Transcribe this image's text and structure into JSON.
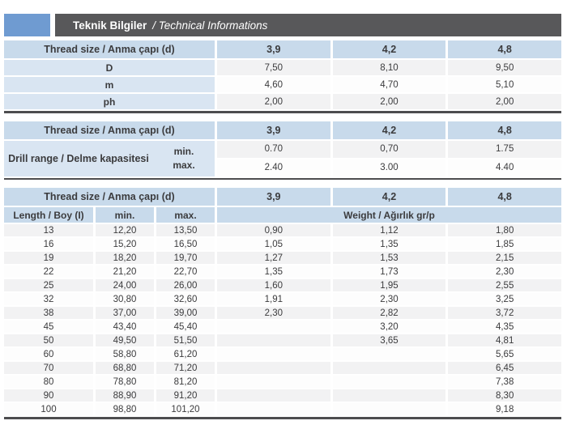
{
  "title_bar": {
    "title_bold": "Teknik Bilgiler",
    "title_italic": "/ Technical Informations",
    "accent_color": "#6f9bd1",
    "bar_color": "#58585a"
  },
  "colors": {
    "header_blue": "#c8daeb",
    "label_blue": "#d9e5f2",
    "stripe_gray": "#f2f2f3",
    "stripe_white": "#fdfdfd",
    "divider_gray": "#4d4d4f",
    "text": "#3b3b3d"
  },
  "tables": {
    "dimensions": {
      "header": [
        "Thread size / Anma çapı (d)",
        "3,9",
        "4,2",
        "4,8"
      ],
      "rows": [
        {
          "label": "D",
          "values": [
            "7,50",
            "8,10",
            "9,50"
          ]
        },
        {
          "label": "m",
          "values": [
            "4,60",
            "4,70",
            "5,10"
          ]
        },
        {
          "label": "ph",
          "values": [
            "2,00",
            "2,00",
            "2,00"
          ]
        }
      ]
    },
    "drill_range": {
      "header": [
        "Thread size / Anma çapı (d)",
        "3,9",
        "4,2",
        "4,8"
      ],
      "label": "Drill range / Delme kapasitesi",
      "rows": [
        {
          "label": "min.",
          "values": [
            "0.70",
            "0,70",
            "1.75"
          ]
        },
        {
          "label": "max.",
          "values": [
            "2.40",
            "3.00",
            "4.40"
          ]
        }
      ]
    },
    "length_weight": {
      "header": [
        "Thread size / Anma çapı (d)",
        "3,9",
        "4,2",
        "4,8"
      ],
      "sub_header": [
        "Length / Boy (I)",
        "min.",
        "max."
      ],
      "weight_header": "Weight / Ağırlık gr/p",
      "rows": [
        [
          "13",
          "12,20",
          "13,50",
          "0,90",
          "1,12",
          "1,80"
        ],
        [
          "16",
          "15,20",
          "16,50",
          "1,05",
          "1,35",
          "1,85"
        ],
        [
          "19",
          "18,20",
          "19,70",
          "1,27",
          "1,53",
          "2,15"
        ],
        [
          "22",
          "21,20",
          "22,70",
          "1,35",
          "1,73",
          "2,30"
        ],
        [
          "25",
          "24,00",
          "26,00",
          "1,60",
          "1,95",
          "2,55"
        ],
        [
          "32",
          "30,80",
          "32,60",
          "1,91",
          "2,30",
          "3,25"
        ],
        [
          "38",
          "37,00",
          "39,00",
          "2,30",
          "2,82",
          "3,72"
        ],
        [
          "45",
          "43,40",
          "45,40",
          "",
          "3,20",
          "4,35"
        ],
        [
          "50",
          "49,50",
          "51,50",
          "",
          "3,65",
          "4,81"
        ],
        [
          "60",
          "58,80",
          "61,20",
          "",
          "",
          "5,65"
        ],
        [
          "70",
          "68,80",
          "71,20",
          "",
          "",
          "6,45"
        ],
        [
          "80",
          "78,80",
          "81,20",
          "",
          "",
          "7,38"
        ],
        [
          "90",
          "88,90",
          "91,20",
          "",
          "",
          "8,30"
        ],
        [
          "100",
          "98,80",
          "101,20",
          "",
          "",
          "9,18"
        ]
      ]
    }
  }
}
